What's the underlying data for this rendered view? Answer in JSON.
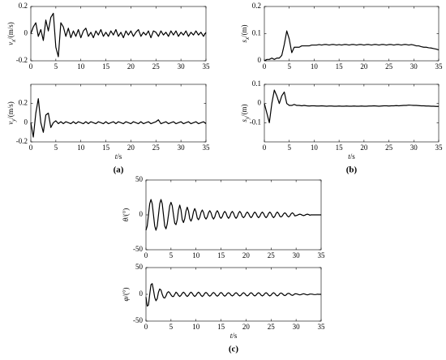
{
  "chart_data": [
    {
      "type": "line",
      "ylabel": {
        "symbol": "v",
        "subscript": "x",
        "unit": "/(m/s)"
      },
      "x": [
        0,
        0.5,
        1,
        1.5,
        2,
        2.5,
        3,
        3.5,
        4,
        4.5,
        5,
        5.5,
        6,
        6.5,
        7,
        7.5,
        8,
        8.5,
        9,
        9.5,
        10,
        10.5,
        11,
        11.5,
        12,
        12.5,
        13,
        13.5,
        14,
        14.5,
        15,
        15.5,
        16,
        16.5,
        17,
        17.5,
        18,
        18.5,
        19,
        19.5,
        20,
        20.5,
        21,
        21.5,
        22,
        22.5,
        23,
        23.5,
        24,
        24.5,
        25,
        25.5,
        26,
        26.5,
        27,
        27.5,
        28,
        28.5,
        29,
        29.5,
        30,
        30.5,
        31,
        31.5,
        32,
        32.5,
        33,
        33.5,
        34,
        34.5,
        35
      ],
      "values": [
        0,
        0.05,
        0.08,
        -0.02,
        0.03,
        -0.05,
        0.1,
        0.02,
        0.12,
        0.15,
        -0.1,
        -0.17,
        0.08,
        0.05,
        -0.02,
        0.04,
        -0.03,
        0.02,
        -0.02,
        0.03,
        -0.03,
        0.02,
        0.04,
        -0.02,
        0.01,
        -0.03,
        0.02,
        -0.01,
        0.03,
        -0.02,
        0.01,
        -0.02,
        0.02,
        -0.01,
        0.03,
        -0.02,
        0.01,
        -0.03,
        0.02,
        -0.01,
        0.02,
        -0.02,
        0.01,
        0.03,
        -0.02,
        0.01,
        -0.01,
        0.02,
        -0.03,
        0.02,
        0.01,
        -0.02,
        0.02,
        -0.01,
        0.01,
        -0.02,
        0.02,
        -0.01,
        0.02,
        -0.02,
        0.01,
        -0.01,
        0.02,
        -0.02,
        0.01,
        -0.01,
        0.02,
        -0.01,
        0.01,
        -0.02,
        0.01
      ],
      "color": "#000000",
      "xlim": [
        0,
        35
      ],
      "xticks": [
        0,
        5,
        10,
        15,
        20,
        25,
        30,
        35
      ],
      "ylim": [
        -0.2,
        0.2
      ],
      "yticks": [
        -0.2,
        0,
        0.2
      ]
    },
    {
      "type": "line",
      "ylabel": {
        "symbol": "v",
        "subscript": "y",
        "unit": "/(m/s)"
      },
      "xlabel": {
        "symbol": "t",
        "unit": "/s"
      },
      "caption": "(a)",
      "x": [
        0,
        0.5,
        1,
        1.5,
        2,
        2.5,
        3,
        3.5,
        4,
        4.5,
        5,
        5.5,
        6,
        6.5,
        7,
        7.5,
        8,
        8.5,
        9,
        9.5,
        10,
        10.5,
        11,
        11.5,
        12,
        12.5,
        13,
        13.5,
        14,
        14.5,
        15,
        15.5,
        16,
        16.5,
        17,
        17.5,
        18,
        18.5,
        19,
        19.5,
        20,
        20.5,
        21,
        21.5,
        22,
        22.5,
        23,
        23.5,
        24,
        24.5,
        25,
        25.5,
        26,
        26.5,
        27,
        27.5,
        28,
        28.5,
        29,
        29.5,
        30,
        30.5,
        31,
        31.5,
        32,
        32.5,
        33,
        33.5,
        34,
        34.5,
        35
      ],
      "values": [
        0,
        -0.15,
        0.1,
        0.25,
        0,
        -0.1,
        0.08,
        0.1,
        -0.05,
        0,
        0.02,
        -0.01,
        0.01,
        -0.01,
        0.01,
        0,
        -0.01,
        0.01,
        -0.01,
        0.01,
        0,
        -0.01,
        0.01,
        -0.01,
        0.01,
        0,
        -0.01,
        0.01,
        0,
        -0.01,
        0.01,
        -0.01,
        0,
        0.01,
        -0.01,
        0.01,
        0,
        -0.01,
        0.01,
        0,
        -0.01,
        0.01,
        0,
        -0.01,
        0.01,
        -0.01,
        0,
        0.01,
        -0.01,
        0,
        0.01,
        0.03,
        -0.01,
        0,
        0.01,
        -0.01,
        0,
        0.01,
        -0.01,
        0,
        0.01,
        -0.01,
        0,
        0.01,
        -0.01,
        0,
        0.01,
        -0.01,
        0,
        0.01,
        -0.01
      ],
      "color": "#000000",
      "xlim": [
        0,
        35
      ],
      "xticks": [
        0,
        5,
        10,
        15,
        20,
        25,
        30,
        35
      ],
      "ylim": [
        -0.2,
        0.4
      ],
      "yticks": [
        -0.2,
        0,
        0.2
      ]
    },
    {
      "type": "line",
      "ylabel": {
        "symbol": "s",
        "subscript": "x",
        "unit": "/(m)"
      },
      "x": [
        0,
        0.5,
        1,
        1.5,
        2,
        2.5,
        3,
        3.5,
        4,
        4.5,
        5,
        5.5,
        6,
        6.5,
        7,
        7.5,
        8,
        8.5,
        9,
        9.5,
        10,
        10.5,
        11,
        11.5,
        12,
        12.5,
        13,
        13.5,
        14,
        14.5,
        15,
        15.5,
        16,
        16.5,
        17,
        17.5,
        18,
        18.5,
        19,
        19.5,
        20,
        20.5,
        21,
        21.5,
        22,
        22.5,
        23,
        23.5,
        24,
        24.5,
        25,
        25.5,
        26,
        26.5,
        27,
        27.5,
        28,
        28.5,
        29,
        29.5,
        30,
        30.5,
        31,
        31.5,
        32,
        32.5,
        33,
        33.5,
        34,
        34.5,
        35
      ],
      "values": [
        0,
        0.005,
        0.005,
        0.01,
        0.005,
        0.01,
        0.01,
        0.02,
        0.06,
        0.11,
        0.08,
        0.03,
        0.05,
        0.05,
        0.05,
        0.055,
        0.055,
        0.055,
        0.055,
        0.058,
        0.058,
        0.058,
        0.06,
        0.058,
        0.06,
        0.06,
        0.058,
        0.06,
        0.06,
        0.058,
        0.06,
        0.058,
        0.06,
        0.06,
        0.058,
        0.06,
        0.06,
        0.058,
        0.06,
        0.06,
        0.058,
        0.06,
        0.06,
        0.058,
        0.06,
        0.06,
        0.058,
        0.06,
        0.06,
        0.058,
        0.06,
        0.06,
        0.058,
        0.06,
        0.06,
        0.058,
        0.06,
        0.06,
        0.058,
        0.06,
        0.058,
        0.055,
        0.055,
        0.052,
        0.05,
        0.05,
        0.048,
        0.047,
        0.045,
        0.043,
        0.04
      ],
      "color": "#000000",
      "xlim": [
        0,
        35
      ],
      "xticks": [
        0,
        5,
        10,
        15,
        20,
        25,
        30,
        35
      ],
      "ylim": [
        0,
        0.2
      ],
      "yticks": [
        0,
        0.1,
        0.2
      ]
    },
    {
      "type": "line",
      "ylabel": {
        "symbol": "s",
        "subscript": "y",
        "unit": "/(m)"
      },
      "xlabel": {
        "symbol": "t",
        "unit": "/s"
      },
      "caption": "(b)",
      "x": [
        0,
        0.5,
        1,
        1.5,
        2,
        2.5,
        3,
        3.5,
        4,
        4.5,
        5,
        5.5,
        6,
        6.5,
        7,
        7.5,
        8,
        8.5,
        9,
        9.5,
        10,
        10.5,
        11,
        11.5,
        12,
        12.5,
        13,
        13.5,
        14,
        14.5,
        15,
        15.5,
        16,
        16.5,
        17,
        17.5,
        18,
        18.5,
        19,
        19.5,
        20,
        20.5,
        21,
        21.5,
        22,
        22.5,
        23,
        23.5,
        24,
        24.5,
        25,
        25.5,
        26,
        26.5,
        27,
        27.5,
        28,
        28.5,
        29,
        29.5,
        30,
        30.5,
        31,
        31.5,
        32,
        32.5,
        33,
        33.5,
        34,
        34.5,
        35
      ],
      "values": [
        0,
        -0.05,
        -0.1,
        0,
        0.07,
        0.04,
        0,
        0.04,
        0.06,
        0,
        -0.01,
        -0.01,
        -0.005,
        -0.01,
        -0.01,
        -0.012,
        -0.01,
        -0.012,
        -0.013,
        -0.012,
        -0.012,
        -0.013,
        -0.013,
        -0.012,
        -0.013,
        -0.014,
        -0.013,
        -0.013,
        -0.014,
        -0.014,
        -0.013,
        -0.014,
        -0.014,
        -0.013,
        -0.014,
        -0.014,
        -0.013,
        -0.014,
        -0.014,
        -0.013,
        -0.014,
        -0.014,
        -0.013,
        -0.013,
        -0.012,
        -0.013,
        -0.014,
        -0.013,
        -0.012,
        -0.012,
        -0.013,
        -0.012,
        -0.012,
        -0.011,
        -0.012,
        -0.011,
        -0.01,
        -0.01,
        -0.008,
        -0.009,
        -0.01,
        -0.01,
        -0.011,
        -0.012,
        -0.012,
        -0.013,
        -0.013,
        -0.014,
        -0.014,
        -0.015,
        -0.015
      ],
      "color": "#000000",
      "xlim": [
        0,
        35
      ],
      "xticks": [
        0,
        5,
        10,
        15,
        20,
        25,
        30,
        35
      ],
      "ylim": [
        -0.2,
        0.1
      ],
      "yticks": [
        -0.1,
        0,
        0.1
      ]
    },
    {
      "type": "line",
      "ylabel": {
        "symbol": "θ",
        "unit": "/(°)"
      },
      "x": [
        0,
        0.25,
        0.5,
        0.75,
        1,
        1.25,
        1.5,
        1.75,
        2,
        2.25,
        2.5,
        2.75,
        3,
        3.25,
        3.5,
        3.75,
        4,
        4.25,
        4.5,
        4.75,
        5,
        5.25,
        5.5,
        5.75,
        6,
        6.25,
        6.5,
        6.75,
        7,
        7.25,
        7.5,
        7.75,
        8,
        8.25,
        8.5,
        8.75,
        9,
        9.25,
        9.5,
        9.75,
        10,
        10.25,
        10.5,
        10.75,
        11,
        11.25,
        11.5,
        11.75,
        12,
        12.25,
        12.5,
        12.75,
        13,
        13.25,
        13.5,
        13.75,
        14,
        14.25,
        14.5,
        14.75,
        15,
        15.25,
        15.5,
        15.75,
        16,
        16.25,
        16.5,
        16.75,
        17,
        17.25,
        17.5,
        17.75,
        18,
        18.25,
        18.5,
        18.75,
        19,
        19.25,
        19.5,
        19.75,
        20,
        20.25,
        20.5,
        20.75,
        21,
        21.25,
        21.5,
        21.75,
        22,
        22.25,
        22.5,
        22.75,
        23,
        23.25,
        23.5,
        23.75,
        24,
        24.25,
        24.5,
        24.75,
        25,
        25.25,
        25.5,
        25.75,
        26,
        26.25,
        26.5,
        26.75,
        27,
        27.25,
        27.5,
        27.75,
        28,
        28.25,
        28.5,
        28.75,
        29,
        29.25,
        29.5,
        29.75,
        30,
        30.25,
        30.5,
        30.75,
        31,
        31.25,
        31.5,
        31.75,
        32,
        32.25,
        32.5,
        32.75,
        33,
        33.25,
        33.5,
        33.75,
        34,
        34.25,
        34.5,
        34.75,
        35
      ],
      "values": [
        -22,
        -16,
        0,
        16,
        22,
        16,
        0,
        -16,
        -22,
        -16,
        0,
        16,
        22,
        16,
        0,
        -16,
        -20,
        -13,
        0,
        13,
        18,
        13,
        0,
        -12,
        -14,
        -7,
        7,
        14,
        7,
        -7,
        -11,
        -5.5,
        5.5,
        11,
        5.5,
        -5.5,
        -9,
        -4.5,
        4.5,
        9,
        4.5,
        -4.5,
        -7,
        -3.5,
        3.5,
        7,
        3.5,
        -3.5,
        -6,
        -3,
        3,
        6,
        3,
        -3,
        -6,
        -3,
        3,
        6,
        3,
        -3,
        -5,
        -2.5,
        2.5,
        5,
        2.5,
        -2.5,
        -5,
        -2.5,
        2.5,
        5,
        2.5,
        -2.5,
        -5,
        -2.5,
        2.5,
        5,
        2.5,
        -2.5,
        -4,
        -2,
        2,
        4,
        2,
        -2,
        -4,
        -2,
        2,
        4,
        2,
        -2,
        -4,
        -2,
        2,
        4,
        2,
        -2,
        -4,
        -2,
        2,
        4,
        2,
        -2,
        -4,
        -2,
        2,
        4,
        2,
        -2,
        -3,
        -1.5,
        1.5,
        3,
        1.5,
        -1.5,
        -3,
        -1.5,
        1.5,
        3,
        1.5,
        -1.5,
        -1,
        -0.5,
        0.5,
        1,
        0.5,
        -0.5,
        -1,
        -0.5,
        0.5,
        1,
        0.5,
        -0.5,
        0,
        0,
        0,
        0,
        0,
        0,
        0,
        0,
        0
      ],
      "color": "#000000",
      "xlim": [
        0,
        35
      ],
      "xticks": [
        0,
        5,
        10,
        15,
        20,
        25,
        30,
        35
      ],
      "ylim": [
        -50,
        50
      ],
      "yticks": [
        -50,
        0,
        50
      ]
    },
    {
      "type": "line",
      "ylabel": {
        "symbol": "φ",
        "unit": "/(°)"
      },
      "xlabel": {
        "symbol": "t",
        "unit": "/s"
      },
      "caption": "(c)",
      "x": [
        0,
        0.25,
        0.5,
        0.75,
        1,
        1.25,
        1.5,
        1.75,
        2,
        2.25,
        2.5,
        2.75,
        3,
        3.25,
        3.5,
        3.75,
        4,
        4.25,
        4.5,
        4.75,
        5,
        5.25,
        5.5,
        5.75,
        6,
        6.25,
        6.5,
        6.75,
        7,
        7.25,
        7.5,
        7.75,
        8,
        8.25,
        8.5,
        8.75,
        9,
        9.25,
        9.5,
        9.75,
        10,
        10.25,
        10.5,
        10.75,
        11,
        11.25,
        11.5,
        11.75,
        12,
        12.25,
        12.5,
        12.75,
        13,
        13.25,
        13.5,
        13.75,
        14,
        14.25,
        14.5,
        14.75,
        15,
        15.25,
        15.5,
        15.75,
        16,
        16.25,
        16.5,
        16.75,
        17,
        17.25,
        17.5,
        17.75,
        18,
        18.25,
        18.5,
        18.75,
        19,
        19.25,
        19.5,
        19.75,
        20,
        20.25,
        20.5,
        20.75,
        21,
        21.25,
        21.5,
        21.75,
        22,
        22.25,
        22.5,
        22.75,
        23,
        23.25,
        23.5,
        23.75,
        24,
        24.25,
        24.5,
        24.75,
        25,
        25.25,
        25.5,
        25.75,
        26,
        26.25,
        26.5,
        26.75,
        27,
        27.25,
        27.5,
        27.75,
        28,
        28.25,
        28.5,
        28.75,
        29,
        29.25,
        29.5,
        29.75,
        30,
        30.25,
        30.5,
        30.75,
        31,
        31.25,
        31.5,
        31.75,
        32,
        32.25,
        32.5,
        32.75,
        33,
        33.25,
        33.5,
        33.75,
        34,
        34.25,
        34.5,
        34.75,
        35
      ],
      "values": [
        -5,
        -22,
        -20,
        0,
        18,
        20,
        8,
        -6,
        -12,
        -8,
        4,
        10,
        8,
        0,
        -6,
        -7,
        -3,
        3,
        5,
        3,
        -1,
        -4,
        -4,
        0,
        4,
        2,
        -2,
        -4,
        -2,
        2,
        4,
        2,
        -2,
        -4,
        -2,
        2,
        4,
        2,
        -2,
        -4,
        -2,
        2,
        4,
        2,
        -2,
        -4,
        -2,
        2,
        3.5,
        1.75,
        -1.75,
        -3.5,
        -1.75,
        1.75,
        3.5,
        1.75,
        -1.75,
        -3.5,
        -1.75,
        1.75,
        3.5,
        1.75,
        -1.75,
        -3.5,
        -1.75,
        1.75,
        3,
        1.5,
        -1.5,
        -3,
        -1.5,
        1.5,
        3,
        1.5,
        -1.5,
        -3,
        -1.5,
        1.5,
        3,
        1.5,
        -1.5,
        -3,
        -1.5,
        1.5,
        3,
        1.5,
        -1.5,
        -3,
        -1.5,
        1.5,
        3,
        1.5,
        -1.5,
        -3,
        -1.5,
        1.5,
        3,
        1.5,
        -1.5,
        -3,
        -1.5,
        1.5,
        3,
        1.5,
        -1.5,
        -3,
        -1.5,
        1.5,
        2.5,
        1.25,
        -1.25,
        -2.5,
        -1.25,
        1.25,
        2,
        1,
        -1,
        -2,
        -1,
        1,
        1,
        0.5,
        -0.5,
        -1,
        -0.5,
        0.5,
        1,
        0.5,
        -0.5,
        -1,
        -0.5,
        0.5,
        0.5,
        0.25,
        -0.25,
        -0.5,
        -0.25,
        0.25,
        0,
        0,
        0
      ],
      "color": "#000000",
      "xlim": [
        0,
        35
      ],
      "xticks": [
        0,
        5,
        10,
        15,
        20,
        25,
        30,
        35
      ],
      "ylim": [
        -50,
        50
      ],
      "yticks": [
        -50,
        0,
        50
      ]
    }
  ]
}
